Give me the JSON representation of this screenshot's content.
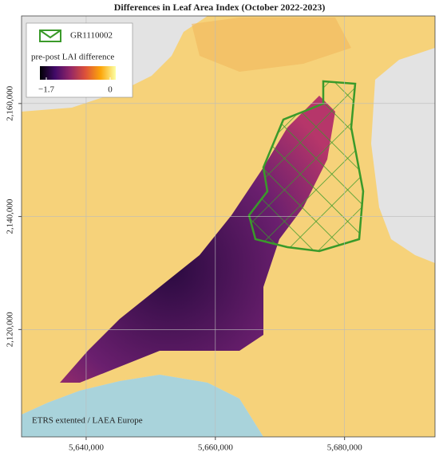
{
  "map": {
    "title": "Differences in Leaf Area Index (October 2022-2023)",
    "xlim": [
      5630000,
      5694000
    ],
    "ylim": [
      2101000,
      2175500
    ],
    "xticks": [
      {
        "value": 5640000,
        "label": "5,640,000"
      },
      {
        "value": 5660000,
        "label": "5,660,000"
      },
      {
        "value": 5680000,
        "label": "5,680,000"
      }
    ],
    "yticks": [
      {
        "value": 2120000,
        "label": "2,120,000"
      },
      {
        "value": 2140000,
        "label": "2,140,000"
      },
      {
        "value": 2160000,
        "label": "2,160,000"
      }
    ],
    "grid": true,
    "legend": {
      "area_name": "GR1110002",
      "area_color": "#3a9a2a",
      "colorbar_title": "pre-post LAI difference",
      "colorbar_ticks": [
        {
          "value": -1.7,
          "label": "−1.7"
        },
        0
      ],
      "colors": [
        "#000004",
        "#420a68",
        "#932667",
        "#dd513a",
        "#fca50a",
        "#fcffa4"
      ]
    },
    "credit": "ETRS extented / LAEA Europe"
  }
}
